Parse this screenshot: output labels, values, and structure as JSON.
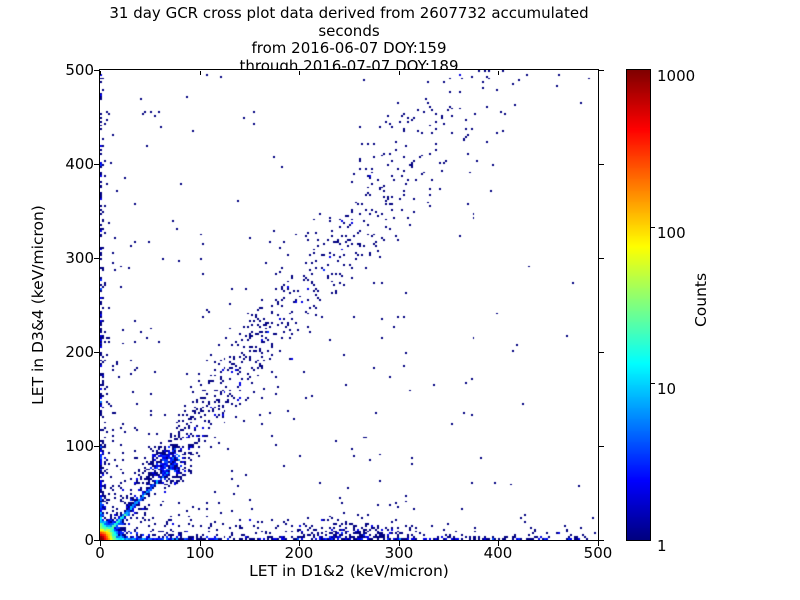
{
  "chart_data": {
    "type": "heatmap",
    "subtype": "2d_histogram_cross_plot",
    "title_lines": [
      "31 day GCR cross plot data derived from 2607732 accumulated seconds",
      "from 2016-06-07 DOY:159",
      "through 2016-07-07 DOY:189"
    ],
    "xlabel": "LET in D1&2 (keV/micron)",
    "ylabel": "LET in D3&4 (keV/micron)",
    "xlim": [
      0,
      500
    ],
    "ylim": [
      0,
      500
    ],
    "xticks": [
      0,
      100,
      200,
      300,
      400,
      500
    ],
    "yticks": [
      0,
      100,
      200,
      300,
      400,
      500
    ],
    "grid": false,
    "background_color": "#ffffff",
    "point_color_min": "#000080",
    "colorbar": {
      "label": "Counts",
      "scale": "log",
      "range": [
        1,
        1000
      ],
      "ticks": [
        1000,
        100,
        10,
        1
      ],
      "colormap": "jet",
      "position": "right"
    },
    "bin_size_units": 2,
    "seed": 159189,
    "density_components": [
      {
        "name": "origin-hotspot",
        "kind": "radial_exp",
        "x0": 0,
        "y0": 0,
        "amplitude": 2500,
        "scale": 3
      },
      {
        "name": "x-axis-band",
        "kind": "band_x",
        "terms": [
          [
            30,
            1.2,
            30
          ],
          [
            2.2,
            1.5,
            700
          ],
          [
            0.45,
            10,
            260
          ]
        ]
      },
      {
        "name": "y-axis-band",
        "kind": "band_y",
        "terms": [
          [
            25,
            1.2,
            25
          ],
          [
            1.8,
            1.5,
            420
          ],
          [
            0.35,
            8,
            150
          ]
        ]
      },
      {
        "name": "main-diagonal-track",
        "kind": "diag",
        "slope": 1.08,
        "amplitude": 35,
        "sigma": 1.6,
        "sigma_grow": 0,
        "decay": 22
      },
      {
        "name": "secondary-diagonal-track",
        "kind": "diag",
        "slope": 0.78,
        "amplitude": 2.0,
        "sigma": 1.5,
        "sigma_grow": 0,
        "decay": 18
      },
      {
        "name": "diffuse-diagonal-band",
        "kind": "diag",
        "slope": 1.3,
        "amplitude": 0.38,
        "sigma": 10,
        "sigma_grow": 0.1,
        "decay": 170
      },
      {
        "name": "diagonal-blob",
        "kind": "gauss2d",
        "x0": 68,
        "y0": 80,
        "sx": 9,
        "sy": 11,
        "amplitude": 2.2
      },
      {
        "name": "low-bottom-cluster",
        "kind": "gauss2d",
        "x0": 255,
        "y0": 6,
        "sx": 30,
        "sy": 7,
        "amplitude": 0.5
      },
      {
        "name": "vertical-streaks",
        "kind": "streaks",
        "xs": [
          12,
          22,
          35,
          50
        ],
        "amplitude": 0.22,
        "sigma": 1.3,
        "decay": 90
      },
      {
        "name": "background",
        "kind": "background",
        "uniform": 0.0014,
        "amplitude": 0.02,
        "scale": 190
      }
    ]
  }
}
